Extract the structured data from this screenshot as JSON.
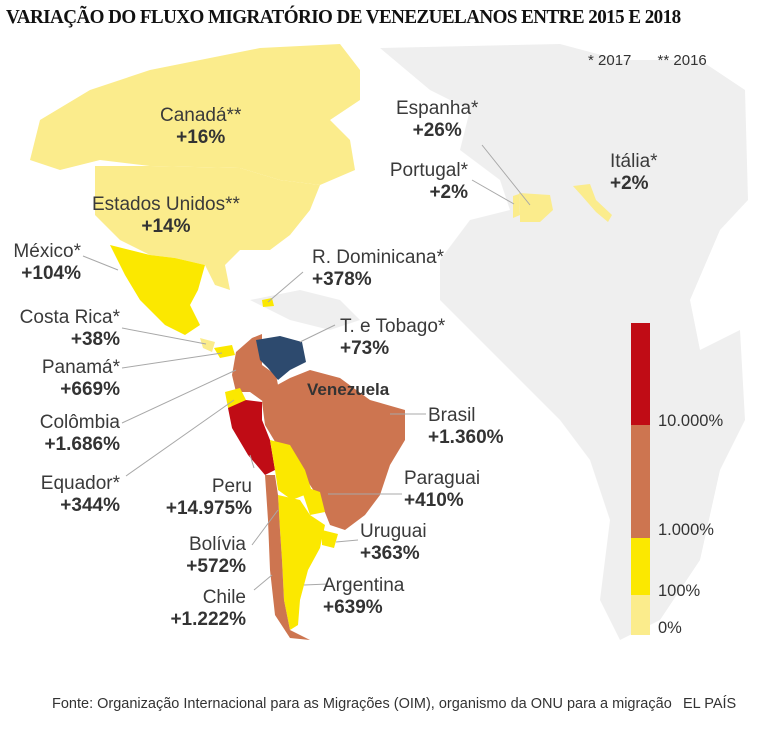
{
  "title": "VARIAÇÃO DO FLUXO MIGRATÓRIO DE VENEZUELANOS ENTRE 2015 E 2018",
  "notes": [
    "* 2017",
    "** 2016"
  ],
  "origin_label": "Venezuela",
  "colors": {
    "bin_0_100": "#fbec8c",
    "bin_100_1000": "#fbe800",
    "bin_1000_10000": "#cd7550",
    "bin_10000_plus": "#c00c15",
    "origin": "#2d4a6e",
    "land_other": "#efefef",
    "leader": "#9a9a9a"
  },
  "countries": [
    {
      "name": "Canadá**",
      "value": "+16%",
      "pct": 16,
      "bin": "bin_0_100"
    },
    {
      "name": "Estados Unidos**",
      "value": "+14%",
      "pct": 14,
      "bin": "bin_0_100"
    },
    {
      "name": "México*",
      "value": "+104%",
      "pct": 104,
      "bin": "bin_100_1000"
    },
    {
      "name": "Costa Rica*",
      "value": "+38%",
      "pct": 38,
      "bin": "bin_0_100"
    },
    {
      "name": "Panamá*",
      "value": "+669%",
      "pct": 669,
      "bin": "bin_100_1000"
    },
    {
      "name": "Colômbia",
      "value": "+1.686%",
      "pct": 1686,
      "bin": "bin_1000_10000"
    },
    {
      "name": "Equador*",
      "value": "+344%",
      "pct": 344,
      "bin": "bin_100_1000"
    },
    {
      "name": "Peru",
      "value": "+14.975%",
      "pct": 14975,
      "bin": "bin_10000_plus"
    },
    {
      "name": "Bolívia",
      "value": "+572%",
      "pct": 572,
      "bin": "bin_100_1000"
    },
    {
      "name": "Chile",
      "value": "+1.222%",
      "pct": 1222,
      "bin": "bin_1000_10000"
    },
    {
      "name": "R. Dominicana*",
      "value": "+378%",
      "pct": 378,
      "bin": "bin_100_1000"
    },
    {
      "name": "T. e Tobago*",
      "value": "+73%",
      "pct": 73,
      "bin": "bin_0_100"
    },
    {
      "name": "Brasil",
      "value": "+1.360%",
      "pct": 1360,
      "bin": "bin_1000_10000"
    },
    {
      "name": "Paraguai",
      "value": "+410%",
      "pct": 410,
      "bin": "bin_100_1000"
    },
    {
      "name": "Uruguai",
      "value": "+363%",
      "pct": 363,
      "bin": "bin_100_1000"
    },
    {
      "name": "Argentina",
      "value": "+639%",
      "pct": 639,
      "bin": "bin_100_1000"
    },
    {
      "name": "Espanha*",
      "value": "+26%",
      "pct": 26,
      "bin": "bin_0_100"
    },
    {
      "name": "Portugal*",
      "value": "+2%",
      "pct": 2,
      "bin": "bin_0_100"
    },
    {
      "name": "Itália*",
      "value": "+2%",
      "pct": 2,
      "bin": "bin_0_100"
    }
  ],
  "legend": {
    "ticks": [
      "10.000%",
      "1.000%",
      "100%",
      "0%"
    ],
    "bins": [
      {
        "from": "10.000%",
        "to": "",
        "color_key": "bin_10000_plus"
      },
      {
        "from": "1.000%",
        "to": "10.000%",
        "color_key": "bin_1000_10000"
      },
      {
        "from": "100%",
        "to": "1.000%",
        "color_key": "bin_100_1000"
      },
      {
        "from": "0%",
        "to": "100%",
        "color_key": "bin_0_100"
      }
    ]
  },
  "source": "Fonte: Organização Internacional para as Migrações (OIM), organismo da ONU para a migração",
  "brand": "EL PAÍS"
}
